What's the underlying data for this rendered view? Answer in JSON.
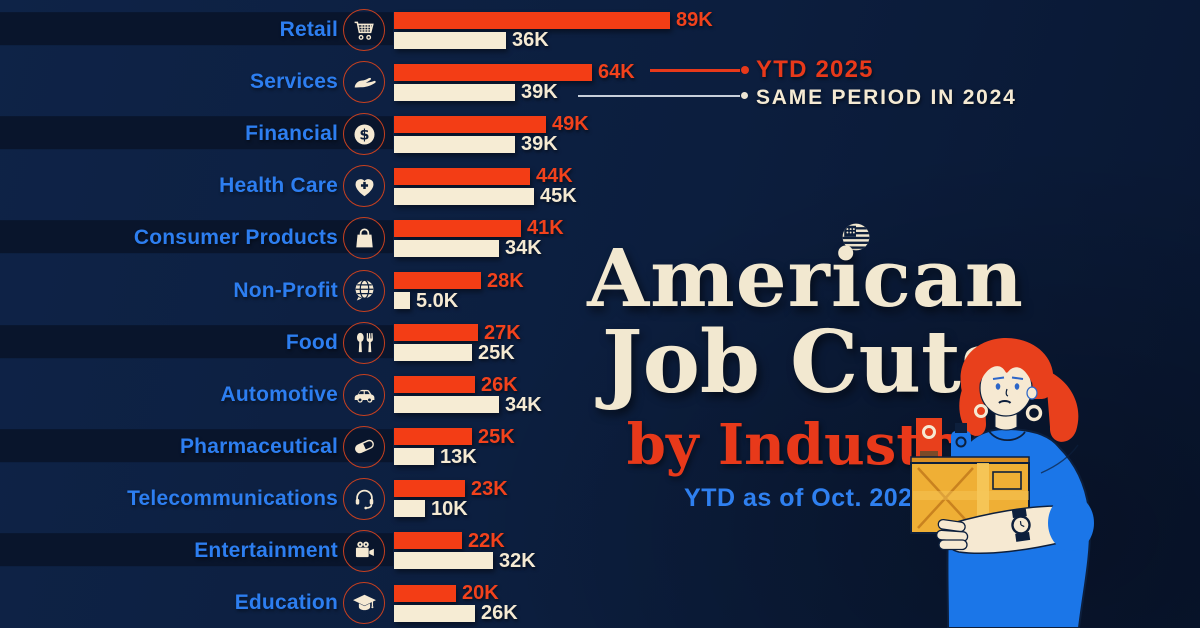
{
  "colors": {
    "background_top": "#0E2347",
    "background_bottom": "#091732",
    "row_stripe": "#09152C",
    "bar_2025": "#F33D15",
    "bar_2024": "#F6ECD4",
    "category_label": "#2D7EF0",
    "value_2025": "#F2421C",
    "value_2024": "#F5EAD3",
    "title_cream": "#F2E8D0",
    "accent_red": "#E8391A",
    "subtitle_blue": "#2F80F0",
    "icon_ring": "#C8401F"
  },
  "legend": {
    "ytd_label": "YTD 2025",
    "prev_label": "SAME PERIOD IN 2024"
  },
  "title": {
    "line1": "American",
    "line2": "Job Cuts",
    "line3": "by Industry",
    "subtitle": "YTD as of Oct. 2025"
  },
  "chart_data": {
    "type": "bar",
    "orientation": "horizontal",
    "value_unit": "K (thousands of job cuts)",
    "xlim": [
      0,
      89
    ],
    "grid": false,
    "legend_position": "top-right",
    "categories": [
      "Retail",
      "Services",
      "Financial",
      "Health Care",
      "Consumer Products",
      "Non-Profit",
      "Food",
      "Automotive",
      "Pharmaceutical",
      "Telecommunications",
      "Entertainment",
      "Education"
    ],
    "icons": [
      "cart",
      "hand",
      "dollar",
      "heart",
      "bag",
      "globe",
      "utensils",
      "car",
      "pill",
      "headset",
      "video",
      "grad-cap"
    ],
    "series": [
      {
        "name": "YTD 2025",
        "color": "#F33D15",
        "values": [
          89,
          64,
          49,
          44,
          41,
          28,
          27,
          26,
          25,
          23,
          22,
          20
        ],
        "labels": [
          "89K",
          "64K",
          "49K",
          "44K",
          "41K",
          "28K",
          "27K",
          "26K",
          "25K",
          "23K",
          "22K",
          "20K"
        ]
      },
      {
        "name": "SAME PERIOD IN 2024",
        "color": "#F6ECD4",
        "values": [
          36,
          39,
          39,
          45,
          34,
          5,
          25,
          34,
          13,
          10,
          32,
          26
        ],
        "labels": [
          "36K",
          "39K",
          "39K",
          "45K",
          "34K",
          "5.0K",
          "25K",
          "34K",
          "13K",
          "10K",
          "32K",
          "26K"
        ]
      }
    ]
  }
}
